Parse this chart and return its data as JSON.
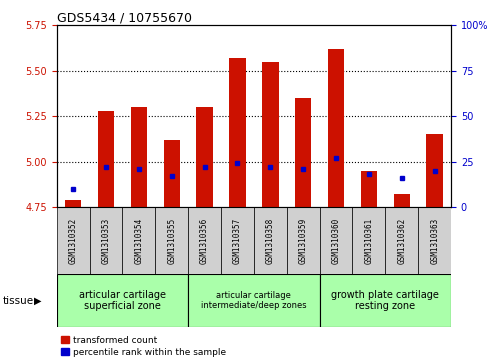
{
  "title": "GDS5434 / 10755670",
  "samples": [
    "GSM1310352",
    "GSM1310353",
    "GSM1310354",
    "GSM1310355",
    "GSM1310356",
    "GSM1310357",
    "GSM1310358",
    "GSM1310359",
    "GSM1310360",
    "GSM1310361",
    "GSM1310362",
    "GSM1310363"
  ],
  "red_values": [
    4.79,
    5.28,
    5.3,
    5.12,
    5.3,
    5.57,
    5.55,
    5.35,
    5.62,
    4.95,
    4.82,
    5.15
  ],
  "blue_values_pct": [
    10,
    22,
    21,
    17,
    22,
    24,
    22,
    21,
    27,
    18,
    16,
    20
  ],
  "ylim_left": [
    4.75,
    5.75
  ],
  "ylim_right": [
    0,
    100
  ],
  "yticks_left": [
    4.75,
    5.0,
    5.25,
    5.5,
    5.75
  ],
  "yticks_right": [
    0,
    25,
    50,
    75,
    100
  ],
  "bar_bottom": 4.75,
  "red_color": "#cc1100",
  "blue_color": "#0000cc",
  "tissue_label": "tissue",
  "legend_red": "transformed count",
  "legend_blue": "percentile rank within the sample",
  "bar_width": 0.5,
  "bg_color": "#ffffff",
  "plot_bg": "#ffffff",
  "group_bounds": [
    [
      0,
      4,
      "articular cartilage\nsuperficial zone"
    ],
    [
      4,
      8,
      "articular cartilage\nintermediate/deep zones"
    ],
    [
      8,
      12,
      "growth plate cartilage\nresting zone"
    ]
  ],
  "group_color": "#aaffaa",
  "sample_bg": "#d0d0d0",
  "title_fontsize": 9,
  "tick_fontsize": 7,
  "sample_fontsize": 5.5,
  "tissue_fontsize": 7,
  "legend_fontsize": 6.5
}
